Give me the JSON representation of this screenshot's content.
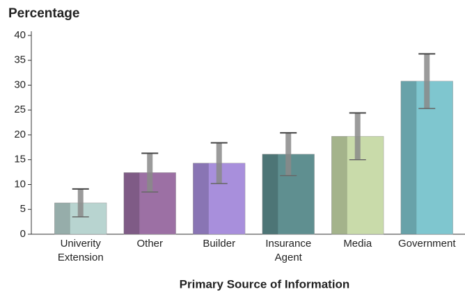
{
  "chart_data": {
    "type": "bar",
    "title": "Percentage",
    "x_label": "Primary Source of Information",
    "categories": [
      "Univerity Extension",
      "Other",
      "Builder",
      "Insurance Agent",
      "Media",
      "Government"
    ],
    "values": [
      6.3,
      12.4,
      14.3,
      16.1,
      19.7,
      30.8
    ],
    "errors": [
      2.8,
      3.9,
      4.1,
      4.3,
      4.7,
      5.5
    ],
    "colors": [
      "#b8d4d0",
      "#9c70a4",
      "#a88fdc",
      "#5f8f90",
      "#c9dbaa",
      "#7fc6cf"
    ],
    "error_color": "#8a8a8a",
    "ylim": [
      0,
      40
    ],
    "yticks": [
      0,
      5,
      10,
      15,
      20,
      25,
      30,
      35,
      40
    ],
    "grid": false
  }
}
